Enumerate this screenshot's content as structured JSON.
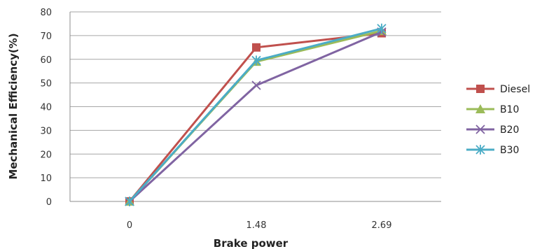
{
  "chart_data": {
    "type": "line",
    "title": "",
    "xlabel": "Brake power",
    "ylabel": "Mechanical Efficiency(%)",
    "categories": [
      "0",
      "1.48",
      "2.69"
    ],
    "ylim": [
      0,
      80
    ],
    "yticks": [
      "0",
      "10",
      "20",
      "30",
      "40",
      "50",
      "60",
      "70",
      "80"
    ],
    "grid": "horizontal",
    "legend_position": "right",
    "series": [
      {
        "name": "Diesel",
        "values": [
          0,
          65,
          71
        ],
        "color": "#C0504D",
        "marker": "square"
      },
      {
        "name": "B10",
        "values": [
          0,
          59,
          72
        ],
        "color": "#9BBB59",
        "marker": "triangle"
      },
      {
        "name": "B20",
        "values": [
          0,
          49,
          71.5
        ],
        "color": "#8064A2",
        "marker": "x"
      },
      {
        "name": "B30",
        "values": [
          0,
          59.5,
          73
        ],
        "color": "#4BACC6",
        "marker": "star"
      }
    ]
  }
}
